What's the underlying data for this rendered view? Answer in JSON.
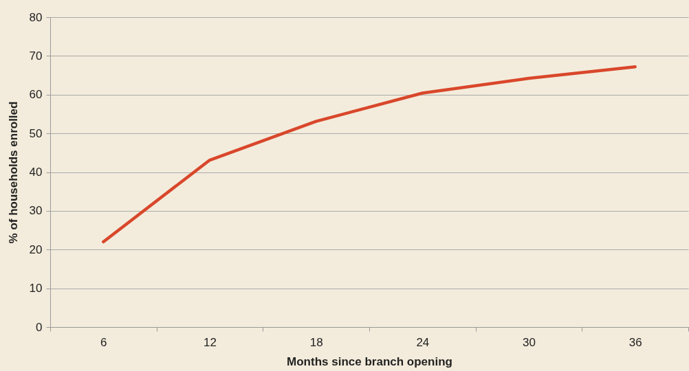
{
  "chart_data": {
    "type": "line",
    "xlabel": "Months since branch opening",
    "ylabel": "% of households enrolled",
    "categories": [
      "6",
      "12",
      "18",
      "24",
      "30",
      "36"
    ],
    "series": [
      {
        "color": "#d9472b",
        "values": [
          22,
          43.1,
          53.1,
          60.4,
          64.2,
          67.2
        ]
      }
    ],
    "ylim": [
      0,
      80
    ],
    "yticks": [
      0,
      10,
      20,
      30,
      40,
      50,
      60,
      70,
      80
    ],
    "grid": "y",
    "line_style": "solid"
  }
}
